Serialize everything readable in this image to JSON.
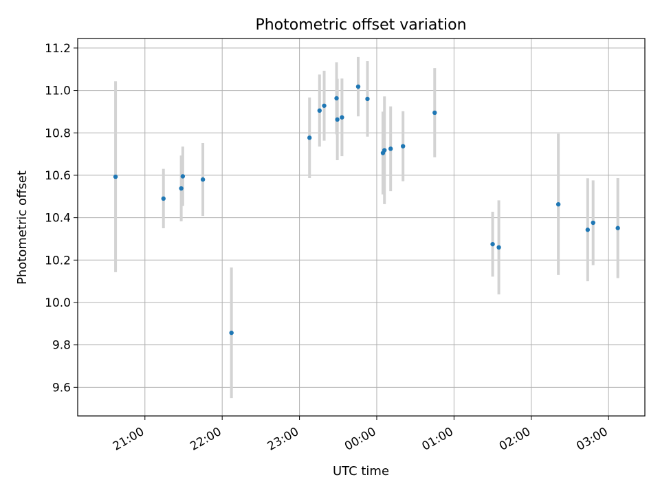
{
  "chart_data": {
    "type": "scatter",
    "title": "Photometric offset variation",
    "xlabel": "UTC time",
    "ylabel": "Photometric offset",
    "x_unit": "hours UTC (values past 24 are the following day)",
    "xlim": [
      20.13,
      27.47
    ],
    "ylim": [
      9.465,
      11.245
    ],
    "grid": true,
    "x_ticks": [
      {
        "value": 21,
        "label": "21:00"
      },
      {
        "value": 22,
        "label": "22:00"
      },
      {
        "value": 23,
        "label": "23:00"
      },
      {
        "value": 24,
        "label": "00:00"
      },
      {
        "value": 25,
        "label": "01:00"
      },
      {
        "value": 26,
        "label": "02:00"
      },
      {
        "value": 27,
        "label": "03:00"
      }
    ],
    "y_ticks": [
      {
        "value": 9.6,
        "label": "9.6"
      },
      {
        "value": 9.8,
        "label": "9.8"
      },
      {
        "value": 10.0,
        "label": "10.0"
      },
      {
        "value": 10.2,
        "label": "10.2"
      },
      {
        "value": 10.4,
        "label": "10.4"
      },
      {
        "value": 10.6,
        "label": "10.6"
      },
      {
        "value": 10.8,
        "label": "10.8"
      },
      {
        "value": 11.0,
        "label": "11.0"
      },
      {
        "value": 11.2,
        "label": "11.2"
      }
    ],
    "marker_color": "#1f77b4",
    "errorbar_color": "#d3d3d3",
    "points": [
      {
        "x": 20.62,
        "y": 10.593,
        "err": 0.45
      },
      {
        "x": 21.24,
        "y": 10.49,
        "err": 0.14
      },
      {
        "x": 21.47,
        "y": 10.538,
        "err": 0.155
      },
      {
        "x": 21.49,
        "y": 10.595,
        "err": 0.14
      },
      {
        "x": 21.75,
        "y": 10.58,
        "err": 0.172
      },
      {
        "x": 22.12,
        "y": 9.857,
        "err": 0.308
      },
      {
        "x": 23.13,
        "y": 10.777,
        "err": 0.19
      },
      {
        "x": 23.26,
        "y": 10.905,
        "err": 0.17
      },
      {
        "x": 23.32,
        "y": 10.928,
        "err": 0.165
      },
      {
        "x": 23.48,
        "y": 10.963,
        "err": 0.17
      },
      {
        "x": 23.49,
        "y": 10.863,
        "err": 0.192
      },
      {
        "x": 23.55,
        "y": 10.873,
        "err": 0.183
      },
      {
        "x": 23.76,
        "y": 11.018,
        "err": 0.14
      },
      {
        "x": 23.88,
        "y": 10.96,
        "err": 0.178
      },
      {
        "x": 24.08,
        "y": 10.705,
        "err": 0.195
      },
      {
        "x": 24.1,
        "y": 10.718,
        "err": 0.254
      },
      {
        "x": 24.18,
        "y": 10.725,
        "err": 0.2
      },
      {
        "x": 24.34,
        "y": 10.737,
        "err": 0.165
      },
      {
        "x": 24.75,
        "y": 10.895,
        "err": 0.21
      },
      {
        "x": 25.5,
        "y": 10.275,
        "err": 0.153
      },
      {
        "x": 25.58,
        "y": 10.26,
        "err": 0.222
      },
      {
        "x": 26.35,
        "y": 10.463,
        "err": 0.333
      },
      {
        "x": 26.73,
        "y": 10.343,
        "err": 0.243
      },
      {
        "x": 26.8,
        "y": 10.376,
        "err": 0.2
      },
      {
        "x": 27.12,
        "y": 10.351,
        "err": 0.236
      }
    ]
  }
}
